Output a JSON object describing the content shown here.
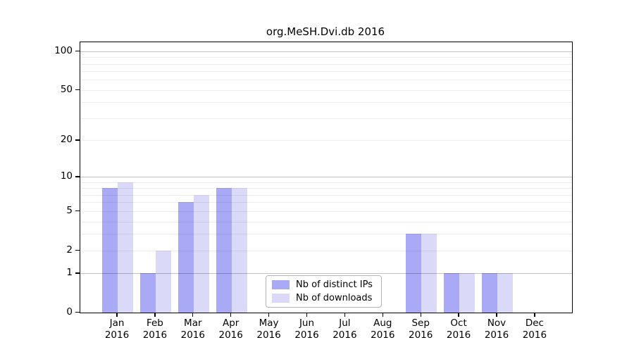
{
  "chart_data": {
    "type": "bar",
    "title": "org.MeSH.Dvi.db 2016",
    "categories": [
      "Jan",
      "Feb",
      "Mar",
      "Apr",
      "May",
      "Jun",
      "Jul",
      "Aug",
      "Sep",
      "Oct",
      "Nov",
      "Dec"
    ],
    "category_year": "2016",
    "series": [
      {
        "name": "Nb of distinct IPs",
        "color": "#a9a9f5",
        "values": [
          8,
          1,
          6,
          8,
          0,
          0,
          0,
          0,
          3,
          1,
          1,
          0
        ]
      },
      {
        "name": "Nb of downloads",
        "color": "#dadaf8",
        "values": [
          9,
          2,
          7,
          8,
          0,
          0,
          0,
          0,
          3,
          1,
          1,
          0
        ]
      }
    ],
    "y_axis": {
      "ticks": [
        0,
        1,
        2,
        5,
        10,
        20,
        50,
        100
      ],
      "scale": "log10(value+1)",
      "ylim": [
        0,
        118
      ],
      "major_gridlines": [
        1,
        10,
        100
      ],
      "minor_gridlines": [
        2,
        3,
        4,
        5,
        6,
        7,
        8,
        9,
        20,
        30,
        40,
        50,
        60,
        70,
        80,
        90
      ]
    },
    "legend": {
      "position": "lower-center",
      "entries": [
        "Nb of distinct IPs",
        "Nb of downloads"
      ]
    },
    "colors": {
      "spine": "#000000",
      "major_grid": "#c3c3c3",
      "minor_grid": "#ededed",
      "background": "#ffffff",
      "text": "#000000"
    }
  }
}
